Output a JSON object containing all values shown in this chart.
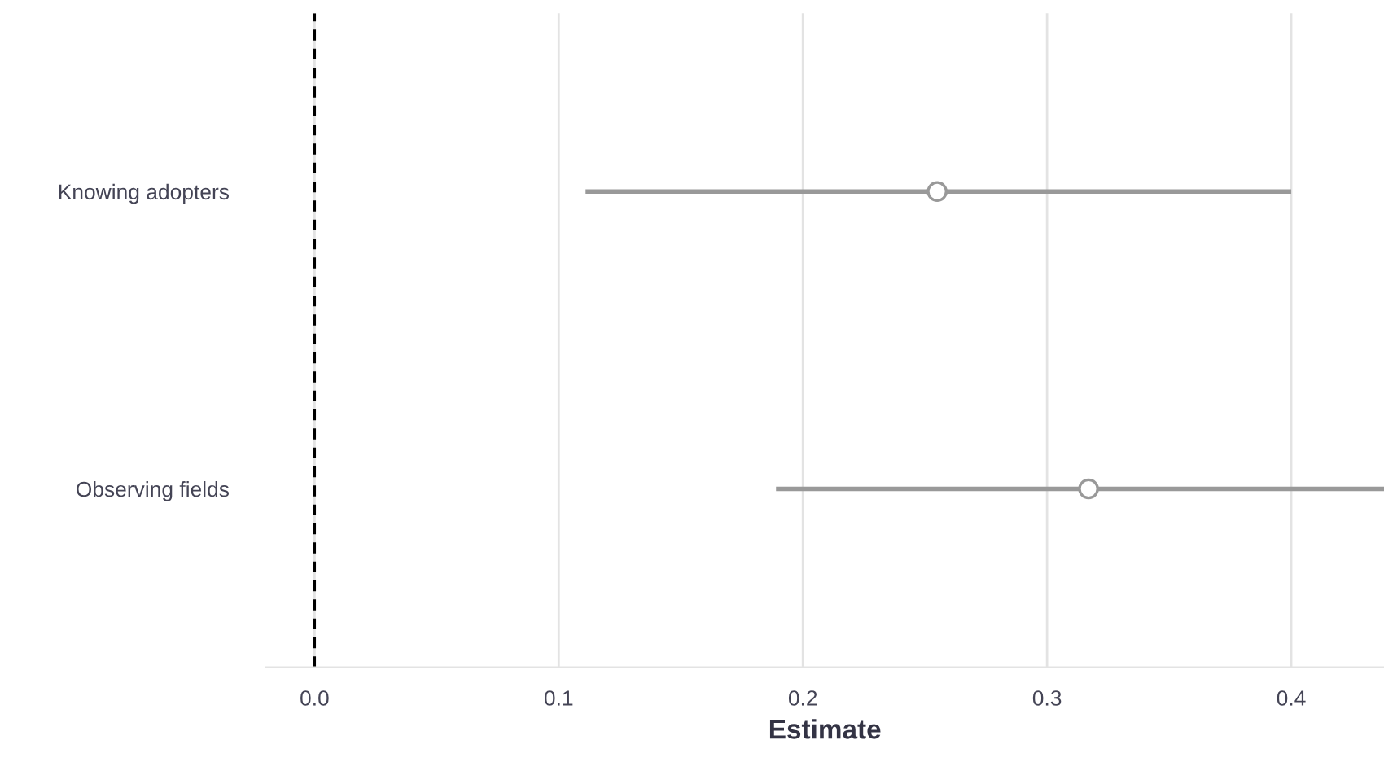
{
  "chart_data": {
    "type": "scatter",
    "orientation": "horizontal",
    "xlabel": "Estimate",
    "categories": [
      "Knowing adopters",
      "Observing fields"
    ],
    "series": [
      {
        "color": "#999999",
        "values": [
          0.255,
          0.317
        ],
        "errors": [
          [
            0.111,
            0.4
          ],
          [
            0.189,
            0.438
          ]
        ]
      }
    ],
    "marker": "circle",
    "xlim": [
      -0.02,
      0.438
    ],
    "xticks": [
      {
        "value": 0,
        "label": "0.0"
      },
      0.1,
      0.2,
      0.3,
      0.4
    ],
    "grid": "x",
    "ref_lines": [
      {
        "axis": "x",
        "value": 0,
        "color": "#000000",
        "line_style": "dashed"
      }
    ]
  }
}
